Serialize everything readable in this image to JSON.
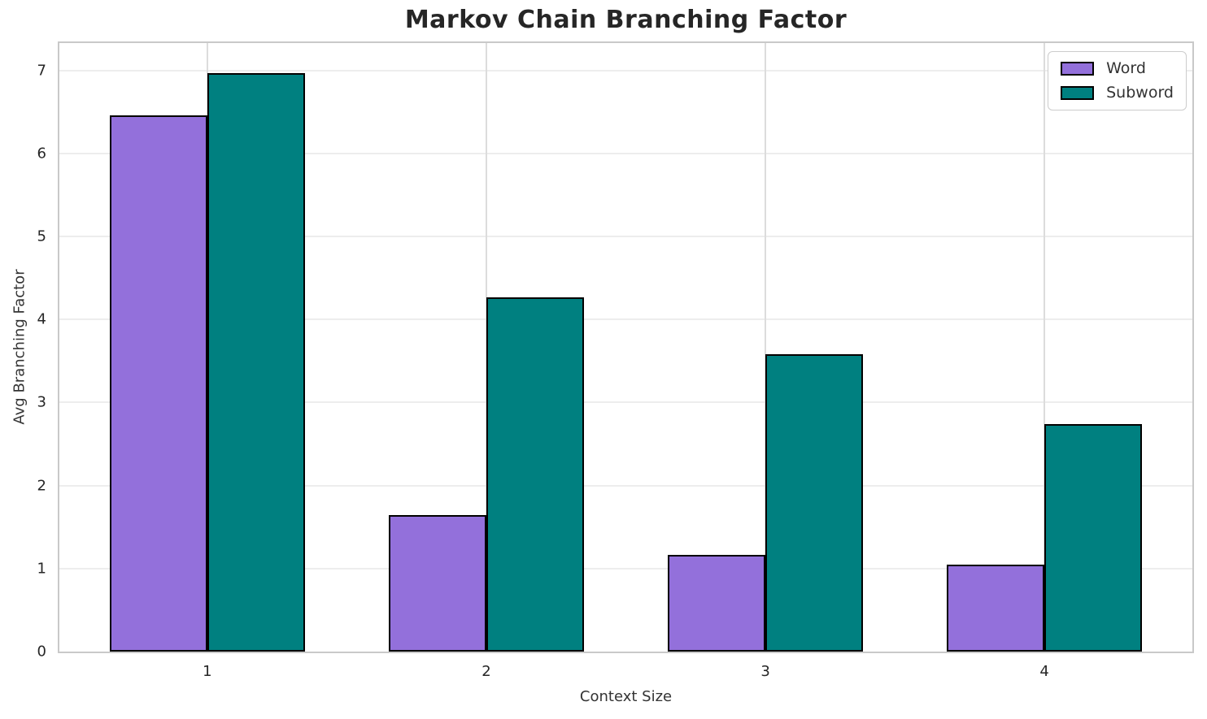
{
  "chart_data": {
    "type": "bar",
    "title": "Markov Chain Branching Factor",
    "xlabel": "Context Size",
    "ylabel": "Avg Branching Factor",
    "categories": [
      "1",
      "2",
      "3",
      "4"
    ],
    "series": [
      {
        "name": "Word",
        "color": "#9370DB",
        "values": [
          6.46,
          1.64,
          1.16,
          1.05
        ]
      },
      {
        "name": "Subword",
        "color": "#008080",
        "values": [
          6.97,
          4.27,
          3.58,
          2.74
        ]
      }
    ],
    "bar_width": 0.35,
    "bar_edge_color": "#000000",
    "xlim": [
      -0.53,
      3.53
    ],
    "ylim": [
      0,
      7.33
    ],
    "yticks": [
      0,
      1,
      2,
      3,
      4,
      5,
      6,
      7
    ],
    "grid": true,
    "legend_position": "upper right"
  }
}
